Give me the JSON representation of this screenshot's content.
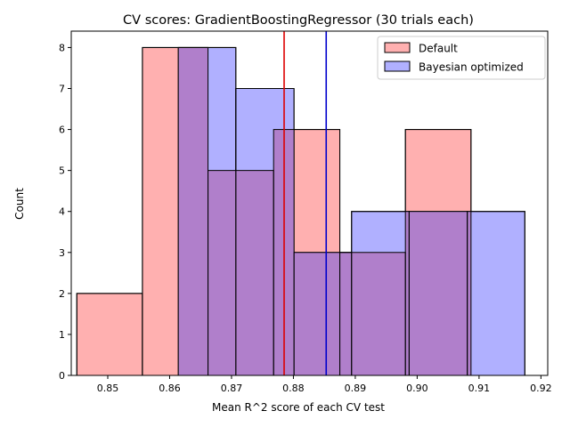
{
  "chart_data": {
    "type": "histogram",
    "title": "CV scores: GradientBoostingRegressor (30 trials each)",
    "xlabel": "Mean R^2 score of each CV test",
    "ylabel": "Count",
    "xlim": [
      0.8441,
      0.9211
    ],
    "ylim": [
      0,
      8.4
    ],
    "x_ticks": [
      0.85,
      0.86,
      0.87,
      0.88,
      0.89,
      0.9,
      0.91,
      0.92
    ],
    "x_tick_labels": [
      "0.85",
      "0.86",
      "0.87",
      "0.88",
      "0.89",
      "0.90",
      "0.91",
      "0.92"
    ],
    "y_ticks": [
      0,
      1,
      2,
      3,
      4,
      5,
      6,
      7,
      8
    ],
    "y_tick_labels": [
      "0",
      "1",
      "2",
      "3",
      "4",
      "5",
      "6",
      "7",
      "8"
    ],
    "legend_position": "upper right",
    "series": [
      {
        "name": "Default",
        "color": "#ffb0b0",
        "bin_edges": [
          0.845,
          0.8556,
          0.8662,
          0.8768,
          0.8875,
          0.8981,
          0.9087
        ],
        "counts": [
          2,
          8,
          5,
          6,
          3,
          6
        ]
      },
      {
        "name": "Bayesian optimized",
        "color": "#b0b0ff",
        "bin_edges": [
          0.8614,
          0.8707,
          0.8801,
          0.8894,
          0.8987,
          0.9081,
          0.9174
        ],
        "counts": [
          8,
          7,
          3,
          4,
          4,
          4
        ]
      }
    ],
    "vlines": [
      {
        "x": 0.8785,
        "color": "#dd0000"
      },
      {
        "x": 0.8853,
        "color": "#0000cc"
      }
    ],
    "overlap_color": "#b07fcb"
  }
}
